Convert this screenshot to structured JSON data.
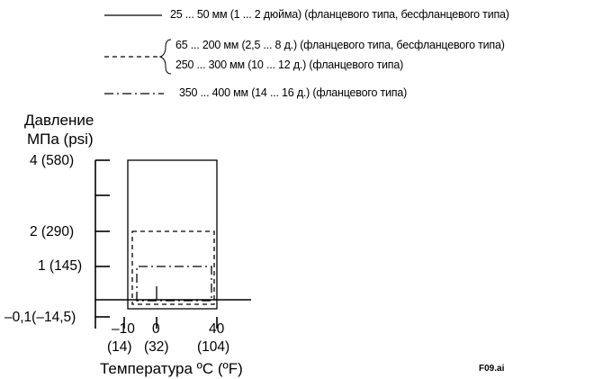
{
  "legend": [
    {
      "text": "25 ... 50 мм (1 ... 2 дюйма) (фланцевого типа, бесфланцевого типа)",
      "style": "solid"
    },
    {
      "text": "65 ... 200 мм (2,5 ... 8 д.) (фланцевого типа, бесфланцевого типа)",
      "style": "dashed"
    },
    {
      "text": "250 ... 300 мм (10 ... 12 д.) (фланцевого типа)",
      "style": "dashed"
    },
    {
      "text": "350 ... 400 мм (14 ... 16 д.) (фланцевого типа)",
      "style": "dash-dot"
    }
  ],
  "y_axis": {
    "title_line1": "Давление",
    "title_line2": "МПа (psi)",
    "ticks": [
      "4 (580)",
      "2 (290)",
      "1 (145)",
      "–0,1(–14,5)"
    ]
  },
  "x_axis": {
    "title": "Температура ºC (ºF)",
    "ticks": [
      {
        "c": "–10",
        "f": "(14)"
      },
      {
        "c": "0",
        "f": "(32)"
      },
      {
        "c": "40",
        "f": "(104)"
      }
    ]
  },
  "file_id": "F09.ai",
  "line_color": "#000000"
}
